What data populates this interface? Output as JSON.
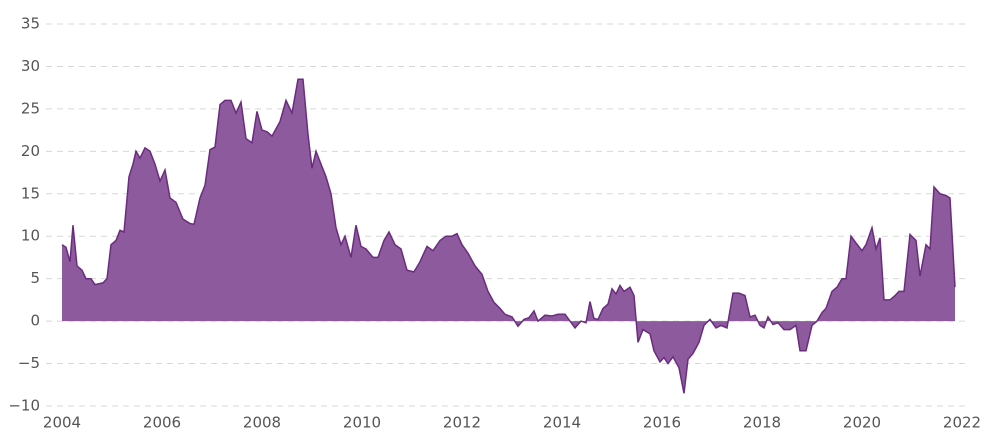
{
  "chart_data": {
    "type": "area",
    "x": [
      2004.0,
      2004.08,
      2004.16,
      2004.22,
      2004.3,
      2004.4,
      2004.48,
      2004.58,
      2004.66,
      2004.82,
      2004.9,
      2004.98,
      2005.08,
      2005.16,
      2005.24,
      2005.34,
      2005.42,
      2005.48,
      2005.56,
      2005.66,
      2005.76,
      2005.86,
      2005.96,
      2006.06,
      2006.16,
      2006.28,
      2006.42,
      2006.56,
      2006.64,
      2006.76,
      2006.86,
      2006.96,
      2007.06,
      2007.16,
      2007.26,
      2007.38,
      2007.48,
      2007.58,
      2007.68,
      2007.8,
      2007.9,
      2008.0,
      2008.1,
      2008.2,
      2008.36,
      2008.48,
      2008.6,
      2008.72,
      2008.82,
      2008.92,
      2009.0,
      2009.08,
      2009.18,
      2009.28,
      2009.38,
      2009.48,
      2009.58,
      2009.66,
      2009.78,
      2009.88,
      2009.98,
      2010.08,
      2010.22,
      2010.32,
      2010.44,
      2010.54,
      2010.66,
      2010.78,
      2010.9,
      2011.04,
      2011.16,
      2011.3,
      2011.42,
      2011.56,
      2011.68,
      2011.8,
      2011.9,
      2012.0,
      2012.12,
      2012.26,
      2012.4,
      2012.52,
      2012.64,
      2012.76,
      2012.86,
      2013.0,
      2013.12,
      2013.24,
      2013.34,
      2013.44,
      2013.52,
      2013.66,
      2013.8,
      2013.92,
      2014.06,
      2014.16,
      2014.26,
      2014.38,
      2014.48,
      2014.56,
      2014.64,
      2014.72,
      2014.82,
      2014.92,
      2015.0,
      2015.08,
      2015.16,
      2015.24,
      2015.36,
      2015.44,
      2015.52,
      2015.62,
      2015.76,
      2015.84,
      2015.96,
      2016.04,
      2016.12,
      2016.22,
      2016.34,
      2016.44,
      2016.52,
      2016.62,
      2016.74,
      2016.84,
      2016.96,
      2017.08,
      2017.18,
      2017.3,
      2017.42,
      2017.54,
      2017.66,
      2017.76,
      2017.86,
      2017.96,
      2018.04,
      2018.12,
      2018.22,
      2018.32,
      2018.44,
      2018.56,
      2018.68,
      2018.76,
      2018.88,
      2019.0,
      2019.1,
      2019.2,
      2019.28,
      2019.4,
      2019.5,
      2019.6,
      2019.68,
      2019.78,
      2019.88,
      2020.0,
      2020.08,
      2020.2,
      2020.28,
      2020.36,
      2020.44,
      2020.56,
      2020.66,
      2020.74,
      2020.84,
      2020.96,
      2021.08,
      2021.16,
      2021.28,
      2021.36,
      2021.44,
      2021.56,
      2021.68,
      2021.76,
      2021.86
    ],
    "values": [
      9,
      8.7,
      7,
      11.3,
      6.5,
      6,
      5,
      5,
      4.3,
      4.5,
      5,
      9,
      9.5,
      10.7,
      10.5,
      17,
      18.5,
      20,
      19.2,
      20.4,
      20,
      18.5,
      16.5,
      17.8,
      14.5,
      14,
      12,
      11.5,
      11.4,
      14.5,
      16,
      20.2,
      20.5,
      25.5,
      26,
      26,
      24.5,
      25.8,
      21.5,
      21,
      24.7,
      22.5,
      22.3,
      21.8,
      23.5,
      26,
      24.5,
      28.5,
      28.5,
      22,
      18,
      20,
      18.5,
      17,
      15,
      11,
      9,
      10,
      7.5,
      11.3,
      8.8,
      8.5,
      7.5,
      7.5,
      9.5,
      10.5,
      9,
      8.5,
      6,
      5.8,
      7,
      8.8,
      8.3,
      9.5,
      10,
      10,
      10.3,
      9,
      8,
      6.5,
      5.5,
      3.5,
      2.2,
      1.5,
      0.8,
      0.5,
      -0.6,
      0.2,
      0.4,
      1.2,
      0,
      0.7,
      0.6,
      0.8,
      0.8,
      0,
      -0.8,
      0,
      -0.2,
      2.3,
      0.3,
      0.2,
      1.5,
      2,
      3.8,
      3.2,
      4.2,
      3.5,
      4,
      3,
      -2.5,
      -1,
      -1.5,
      -3.5,
      -4.8,
      -4.3,
      -5,
      -4.2,
      -5.5,
      -8.5,
      -4.5,
      -3.8,
      -2.5,
      -0.5,
      0.2,
      -0.8,
      -0.5,
      -0.8,
      3.3,
      3.3,
      3,
      0.5,
      0.7,
      -0.5,
      -0.8,
      0.5,
      -0.4,
      -0.2,
      -1,
      -1,
      -0.5,
      -3.5,
      -3.5,
      -0.5,
      0,
      1,
      1.5,
      3.5,
      4,
      5,
      5,
      10,
      9.2,
      8.3,
      9,
      11,
      8.5,
      9.8,
      2.5,
      2.5,
      3,
      3.5,
      3.5,
      10.2,
      9.5,
      5.3,
      9,
      8.5,
      15.8,
      15,
      14.8,
      14.5,
      4
    ],
    "color": "#8d5a9e",
    "line_color": "#6a2c7d",
    "xlim": [
      2004,
      2022
    ],
    "xticks": [
      2004,
      2006,
      2008,
      2010,
      2012,
      2014,
      2016,
      2018,
      2020,
      2022
    ],
    "ylim": [
      -10,
      35
    ],
    "yticks": [
      {
        "value": -10,
        "label": "−10"
      },
      {
        "value": -5,
        "label": "−5"
      },
      0,
      5,
      10,
      15,
      20,
      25,
      30,
      35
    ],
    "grid": true
  }
}
